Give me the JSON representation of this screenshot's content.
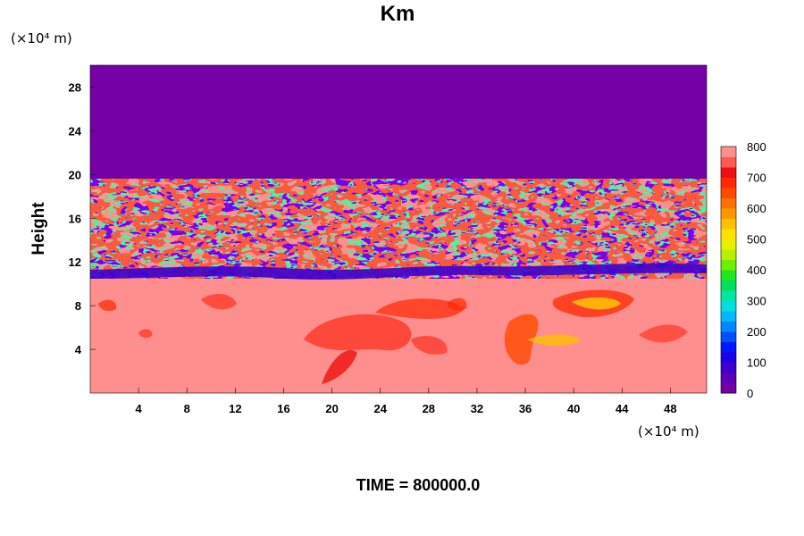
{
  "chart_data": {
    "type": "heatmap",
    "title": "Km",
    "ylabel": "Height",
    "xlabel": "",
    "x_unit": "(×10⁴ m)",
    "y_unit": "(×10⁴ m)",
    "xlim": [
      0,
      51
    ],
    "ylim": [
      0,
      30
    ],
    "x_ticks": [
      4,
      8,
      12,
      16,
      20,
      24,
      28,
      32,
      36,
      40,
      44,
      48
    ],
    "y_ticks": [
      4,
      8,
      12,
      16,
      20,
      24,
      28
    ],
    "colorbar": {
      "range": [
        0,
        800
      ],
      "ticks": [
        0,
        100,
        200,
        300,
        400,
        500,
        600,
        700,
        800
      ],
      "colors": [
        "#7400a6",
        "#5a00b5",
        "#3c00d0",
        "#1d00e8",
        "#0018ff",
        "#0050ff",
        "#0088ff",
        "#00b8ff",
        "#00e0e0",
        "#00e8a0",
        "#00e060",
        "#20e820",
        "#70f000",
        "#b8f000",
        "#e8f000",
        "#ffe000",
        "#ffc000",
        "#ff9800",
        "#ff7000",
        "#ff4a00",
        "#ff2800",
        "#ee1010",
        "#ff5a50",
        "#ff8e8e"
      ]
    },
    "regions": [
      {
        "name": "upper layer",
        "y_range": [
          19.5,
          30
        ],
        "value": 0
      },
      {
        "name": "mixed turbulent layer",
        "y_range": [
          10.5,
          19.5
        ],
        "value_range": [
          0,
          800
        ]
      },
      {
        "name": "lower layer",
        "y_range": [
          0,
          10.5
        ],
        "value_approx": 800
      }
    ],
    "footer": "TIME = 800000.0"
  }
}
